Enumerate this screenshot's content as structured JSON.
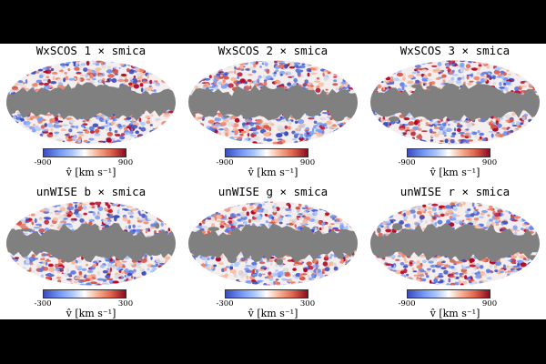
{
  "panels": [
    {
      "title": "WxSCOS 1 × smica",
      "cbar_min": "-900",
      "cbar_max": "900",
      "cbar_label": "v̂ [km s⁻¹]"
    },
    {
      "title": "WxSCOS 2 × smica",
      "cbar_min": "-900",
      "cbar_max": "900",
      "cbar_label": "v̂ [km s⁻¹]"
    },
    {
      "title": "WxSCOS 3 × smica",
      "cbar_min": "-900",
      "cbar_max": "900",
      "cbar_label": "v̂ [km s⁻¹]"
    },
    {
      "title": "unWISE b × smica",
      "cbar_min": "-300",
      "cbar_max": "300",
      "cbar_label": "v̂ [km s⁻¹]"
    },
    {
      "title": "unWISE g × smica",
      "cbar_min": "-300",
      "cbar_max": "300",
      "cbar_label": "v̂ [km s⁻¹]"
    },
    {
      "title": "unWISE r × smica",
      "cbar_min": "-900",
      "cbar_max": "900",
      "cbar_label": "v̂ [km s⁻¹]"
    }
  ],
  "colors": {
    "mask": "#808080",
    "cold": "#3b4cc0",
    "hot": "#b40426",
    "neutral": "#ffffff"
  },
  "colormap": "blue-white-red diverging"
}
